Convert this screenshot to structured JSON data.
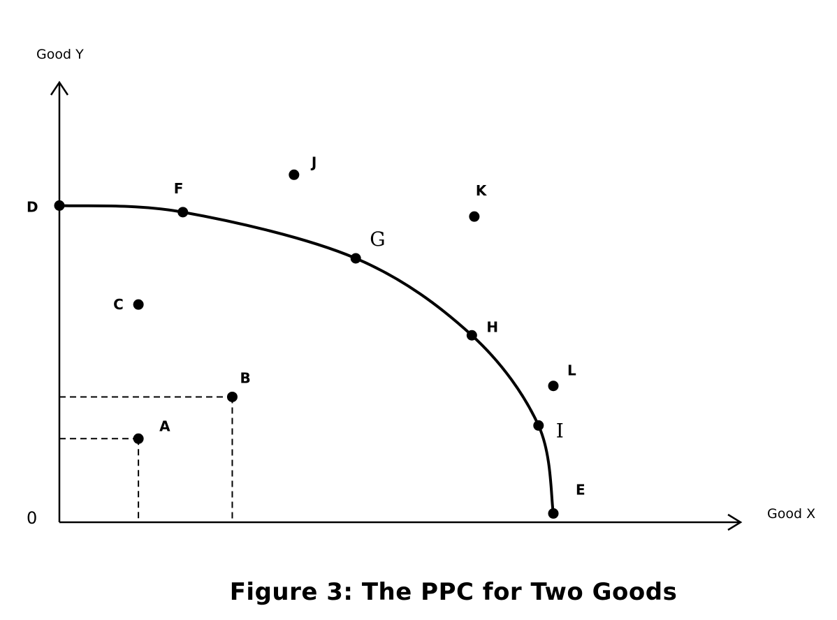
{
  "chart_data": {
    "type": "scatter",
    "title": "",
    "caption": "Figure 3: The PPC for Two Goods",
    "xlabel": "Good X",
    "ylabel": "Good Y",
    "origin_label": "0",
    "xlim": [
      0,
      100
    ],
    "ylim": [
      0,
      100
    ],
    "grid": false,
    "curve": {
      "name": "PPC",
      "start": "D",
      "end": "E",
      "points": [
        {
          "label": "D",
          "x": 0,
          "y": 72,
          "on_curve": true
        },
        {
          "label": "F",
          "x": 25,
          "y": 70.5,
          "on_curve": true
        },
        {
          "label": "G",
          "x": 60,
          "y": 60,
          "on_curve": true
        },
        {
          "label": "H",
          "x": 83.5,
          "y": 42.5,
          "on_curve": true
        },
        {
          "label": "I",
          "x": 97,
          "y": 22,
          "on_curve": true
        },
        {
          "label": "E",
          "x": 100,
          "y": 2,
          "on_curve": true
        }
      ]
    },
    "points_off_curve": [
      {
        "label": "A",
        "x": 16,
        "y": 19,
        "guides": true
      },
      {
        "label": "B",
        "x": 35,
        "y": 28.5,
        "guides": true
      },
      {
        "label": "C",
        "x": 16,
        "y": 49.5,
        "guides": false
      },
      {
        "label": "J",
        "x": 47.5,
        "y": 79,
        "guides": false
      },
      {
        "label": "K",
        "x": 84,
        "y": 69.5,
        "guides": false
      },
      {
        "label": "L",
        "x": 100,
        "y": 31,
        "guides": false
      }
    ]
  }
}
